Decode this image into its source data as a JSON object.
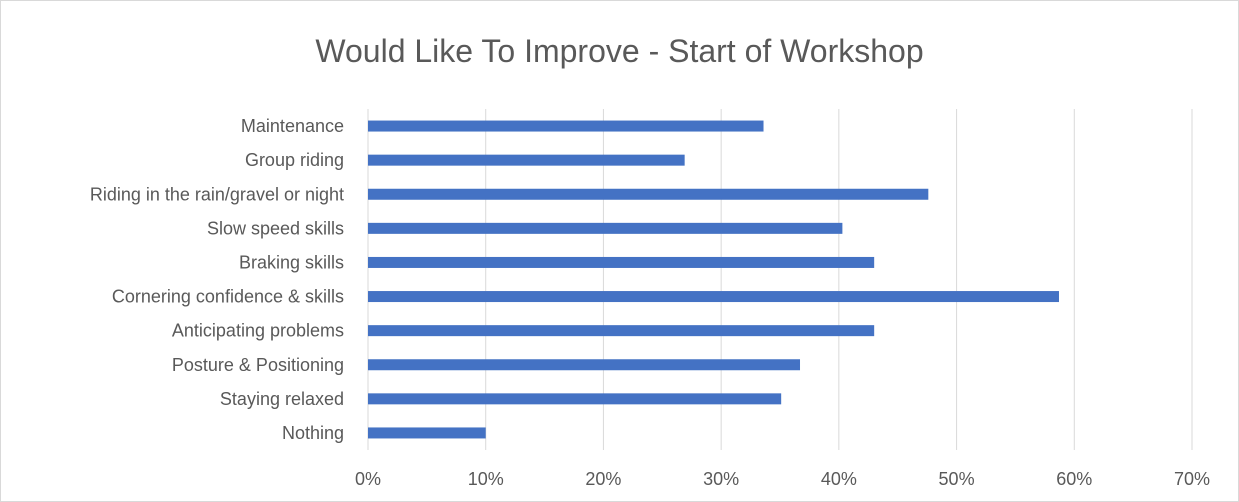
{
  "chart_data": {
    "type": "bar",
    "orientation": "horizontal",
    "title": "Would Like To Improve - Start of Workshop",
    "categories": [
      "Maintenance",
      "Group riding",
      "Riding in the rain/gravel or night",
      "Slow speed skills",
      "Braking skills",
      "Cornering confidence & skills",
      "Anticipating problems",
      "Posture & Positioning",
      "Staying relaxed",
      "Nothing"
    ],
    "values": [
      33.6,
      26.9,
      47.6,
      40.3,
      43.0,
      58.7,
      43.0,
      36.7,
      35.1,
      10.0
    ],
    "xlim": [
      0,
      70
    ],
    "x_ticks": [
      "0%",
      "10%",
      "20%",
      "30%",
      "40%",
      "50%",
      "60%",
      "70%"
    ],
    "xlabel": "",
    "ylabel": "",
    "grid": true,
    "legend": "none",
    "colors": {
      "bar": "#4472c4",
      "grid": "#d9d9d9",
      "text": "#595959",
      "title": "#595959"
    }
  }
}
